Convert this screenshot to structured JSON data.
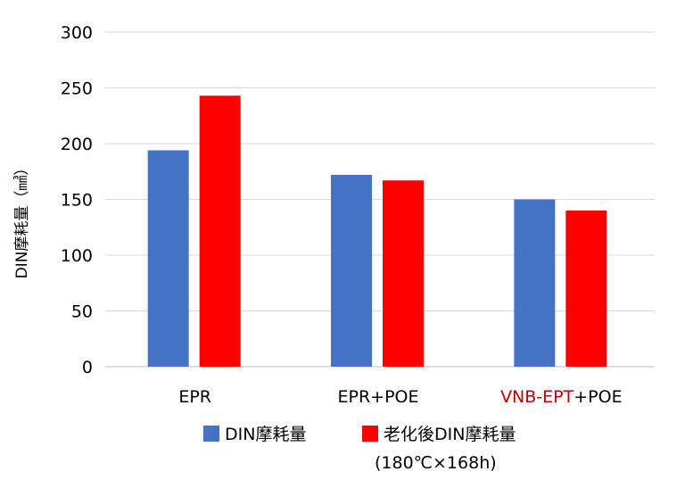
{
  "chart_data": {
    "type": "bar",
    "categories": [
      {
        "parts": [
          {
            "text": "EPR",
            "color": "#000000"
          }
        ]
      },
      {
        "parts": [
          {
            "text": "EPR+POE",
            "color": "#000000"
          }
        ]
      },
      {
        "parts": [
          {
            "text": "VNB-EPT",
            "color": "#c00000"
          },
          {
            "text": "+POE",
            "color": "#000000"
          }
        ]
      }
    ],
    "series": [
      {
        "name": "DIN摩耗量",
        "color": "#4472c4",
        "values": [
          194,
          172,
          150
        ]
      },
      {
        "name": "老化後DIN摩耗量",
        "color": "#ff0000",
        "values": [
          243,
          167,
          140
        ]
      }
    ],
    "ylabel": "DIN摩耗量（㎣）",
    "ylim": [
      0,
      300
    ],
    "yticks": [
      0,
      50,
      100,
      150,
      200,
      250,
      300
    ],
    "grid": true,
    "legend_note": "(180℃×168h)",
    "legend_position": "bottom"
  }
}
